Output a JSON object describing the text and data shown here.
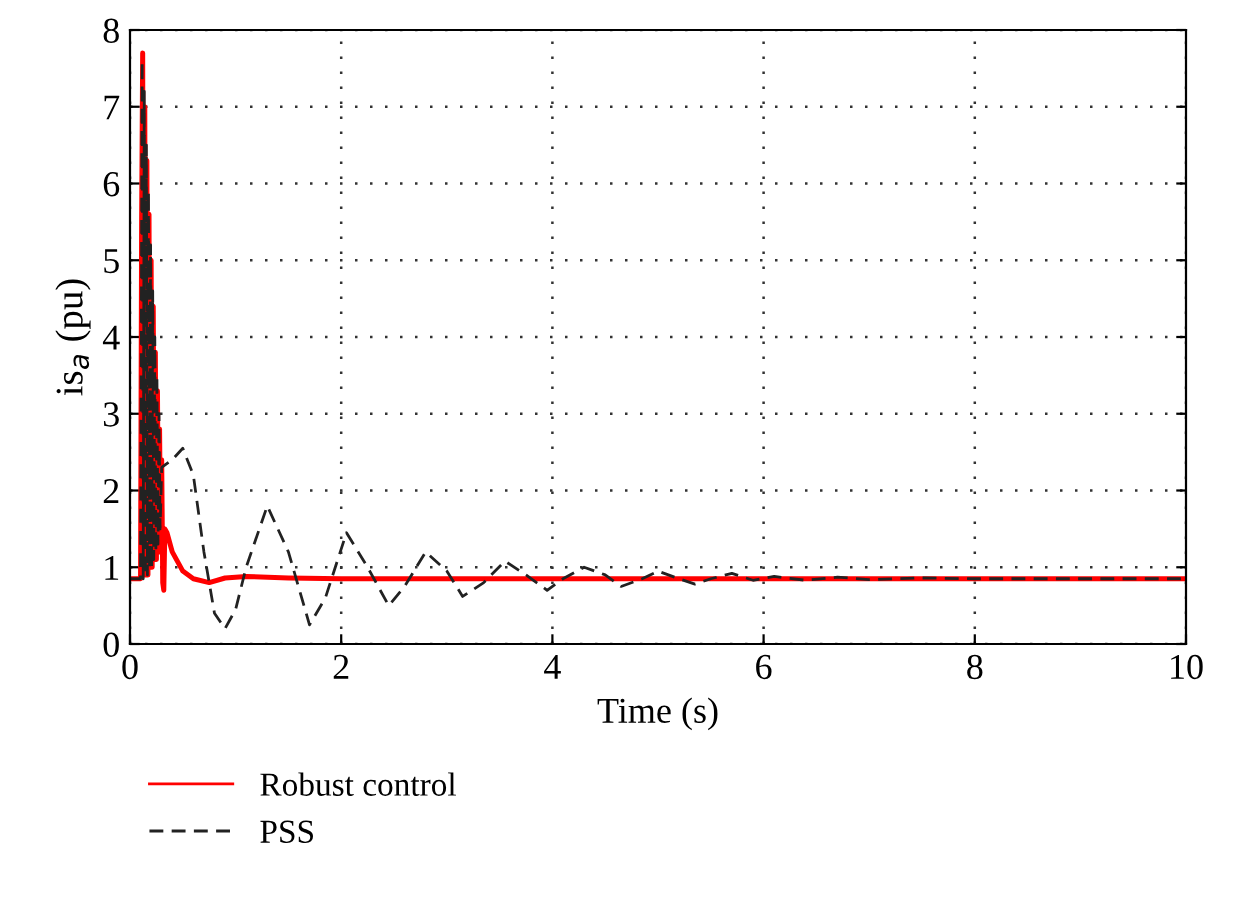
{
  "chart_data": {
    "type": "line",
    "xlabel": "Time (s)",
    "ylabel": "is$_{a}$ (pu)",
    "xlim": [
      0,
      10
    ],
    "ylim": [
      0,
      8
    ],
    "xticks": [
      0,
      2,
      4,
      6,
      8,
      10
    ],
    "yticks": [
      0,
      1,
      2,
      3,
      4,
      5,
      6,
      7,
      8
    ],
    "grid": true,
    "legend": "bottom left",
    "series": [
      {
        "name": "Robust control",
        "color": "#ff0000",
        "line_style": "solid",
        "x": [
          0,
          0.1,
          0.11,
          0.12,
          0.13,
          0.14,
          0.15,
          0.16,
          0.17,
          0.18,
          0.19,
          0.2,
          0.21,
          0.22,
          0.23,
          0.24,
          0.25,
          0.26,
          0.27,
          0.28,
          0.29,
          0.3,
          0.31,
          0.32,
          0.33,
          0.35,
          0.4,
          0.5,
          0.6,
          0.75,
          0.9,
          1.1,
          1.5,
          2,
          4,
          6,
          8,
          10
        ],
        "values": [
          0.85,
          0.85,
          5.5,
          7.7,
          0.9,
          7.0,
          0.9,
          6.3,
          0.9,
          5.6,
          1.0,
          5.0,
          1.0,
          4.4,
          1.1,
          3.8,
          1.1,
          3.3,
          1.2,
          2.8,
          1.2,
          2.4,
          0.8,
          0.7,
          1.5,
          1.45,
          1.2,
          0.95,
          0.85,
          0.8,
          0.86,
          0.88,
          0.86,
          0.85,
          0.85,
          0.85,
          0.85,
          0.85
        ]
      },
      {
        "name": "PSS",
        "color": "#222222",
        "line_style": "dashed",
        "x": [
          0,
          0.1,
          0.115,
          0.125,
          0.135,
          0.145,
          0.155,
          0.165,
          0.175,
          0.185,
          0.195,
          0.205,
          0.215,
          0.225,
          0.235,
          0.245,
          0.255,
          0.265,
          0.275,
          0.285,
          0.3,
          0.4,
          0.5,
          0.6,
          0.7,
          0.8,
          0.9,
          1.0,
          1.1,
          1.3,
          1.5,
          1.7,
          1.85,
          2.05,
          2.25,
          2.45,
          2.6,
          2.8,
          3.0,
          3.15,
          3.35,
          3.55,
          3.75,
          3.95,
          4.1,
          4.3,
          4.5,
          4.65,
          4.85,
          5.0,
          5.2,
          5.35,
          5.5,
          5.7,
          5.9,
          6.1,
          6.4,
          6.7,
          7.0,
          7.5,
          8,
          10
        ],
        "values": [
          0.85,
          0.85,
          7.6,
          0.85,
          7.2,
          0.9,
          6.5,
          0.9,
          5.9,
          1.0,
          5.2,
          1.0,
          4.6,
          1.1,
          4.0,
          1.2,
          3.5,
          1.3,
          3.0,
          1.5,
          2.3,
          2.4,
          2.55,
          2.2,
          1.2,
          0.4,
          0.2,
          0.45,
          1.0,
          1.8,
          1.2,
          0.25,
          0.6,
          1.45,
          1.0,
          0.5,
          0.75,
          1.2,
          0.95,
          0.62,
          0.8,
          1.08,
          0.9,
          0.7,
          0.85,
          1.0,
          0.9,
          0.75,
          0.85,
          0.95,
          0.85,
          0.78,
          0.85,
          0.92,
          0.83,
          0.88,
          0.83,
          0.87,
          0.84,
          0.86,
          0.85,
          0.85
        ]
      }
    ]
  }
}
